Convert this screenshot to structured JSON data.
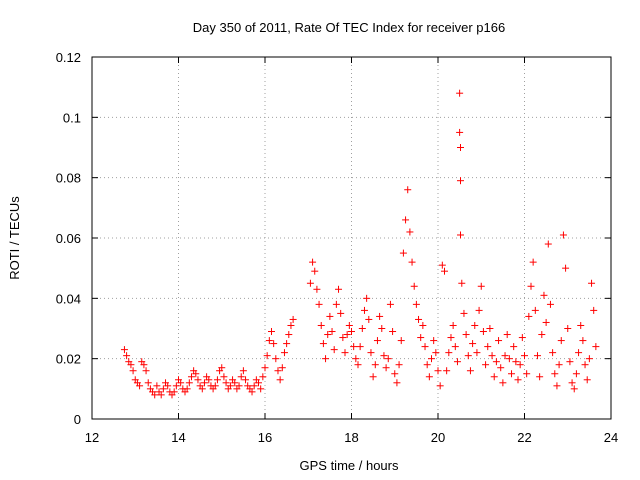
{
  "chart_data": {
    "type": "scatter",
    "title": "Day 350 of 2011, Rate Of TEC Index for receiver p166",
    "xlabel": "GPS time / hours",
    "ylabel": "ROTI / TECUs",
    "xlim": [
      12,
      24
    ],
    "ylim": [
      0,
      0.12
    ],
    "xticks": [
      12,
      14,
      16,
      18,
      20,
      22,
      24
    ],
    "xtick_labels": [
      "12",
      "14",
      "16",
      "18",
      "20",
      "22",
      "24"
    ],
    "yticks": [
      0,
      0.02,
      0.04,
      0.06,
      0.08,
      0.1,
      0.12
    ],
    "ytick_labels": [
      "0",
      "0.02",
      "0.04",
      "0.06",
      "0.08",
      "0.1",
      "0.12"
    ],
    "grid": true,
    "marker": "+",
    "color": "#ff0000",
    "series": [
      {
        "name": "ROTI",
        "points": [
          [
            12.75,
            0.023
          ],
          [
            12.8,
            0.021
          ],
          [
            12.85,
            0.019
          ],
          [
            12.9,
            0.018
          ],
          [
            12.95,
            0.016
          ],
          [
            13.0,
            0.013
          ],
          [
            13.05,
            0.012
          ],
          [
            13.1,
            0.011
          ],
          [
            13.15,
            0.019
          ],
          [
            13.2,
            0.018
          ],
          [
            13.25,
            0.016
          ],
          [
            13.3,
            0.012
          ],
          [
            13.35,
            0.01
          ],
          [
            13.4,
            0.009
          ],
          [
            13.45,
            0.008
          ],
          [
            13.5,
            0.011
          ],
          [
            13.55,
            0.009
          ],
          [
            13.6,
            0.008
          ],
          [
            13.65,
            0.01
          ],
          [
            13.7,
            0.012
          ],
          [
            13.75,
            0.011
          ],
          [
            13.8,
            0.009
          ],
          [
            13.85,
            0.008
          ],
          [
            13.9,
            0.009
          ],
          [
            13.95,
            0.011
          ],
          [
            14.0,
            0.013
          ],
          [
            14.05,
            0.012
          ],
          [
            14.1,
            0.01
          ],
          [
            14.15,
            0.009
          ],
          [
            14.2,
            0.01
          ],
          [
            14.25,
            0.012
          ],
          [
            14.3,
            0.014
          ],
          [
            14.35,
            0.016
          ],
          [
            14.4,
            0.015
          ],
          [
            14.45,
            0.013
          ],
          [
            14.5,
            0.011
          ],
          [
            14.55,
            0.01
          ],
          [
            14.6,
            0.012
          ],
          [
            14.65,
            0.014
          ],
          [
            14.7,
            0.013
          ],
          [
            14.75,
            0.011
          ],
          [
            14.8,
            0.01
          ],
          [
            14.85,
            0.011
          ],
          [
            14.9,
            0.013
          ],
          [
            14.95,
            0.016
          ],
          [
            15.0,
            0.017
          ],
          [
            15.05,
            0.014
          ],
          [
            15.1,
            0.012
          ],
          [
            15.15,
            0.01
          ],
          [
            15.2,
            0.011
          ],
          [
            15.25,
            0.013
          ],
          [
            15.3,
            0.012
          ],
          [
            15.35,
            0.01
          ],
          [
            15.4,
            0.011
          ],
          [
            15.45,
            0.014
          ],
          [
            15.5,
            0.016
          ],
          [
            15.55,
            0.013
          ],
          [
            15.6,
            0.011
          ],
          [
            15.65,
            0.01
          ],
          [
            15.7,
            0.009
          ],
          [
            15.75,
            0.011
          ],
          [
            15.8,
            0.013
          ],
          [
            15.85,
            0.012
          ],
          [
            15.9,
            0.01
          ],
          [
            15.95,
            0.014
          ],
          [
            16.0,
            0.017
          ],
          [
            16.05,
            0.021
          ],
          [
            16.1,
            0.026
          ],
          [
            16.15,
            0.029
          ],
          [
            16.2,
            0.025
          ],
          [
            16.25,
            0.02
          ],
          [
            16.3,
            0.016
          ],
          [
            16.35,
            0.013
          ],
          [
            16.4,
            0.017
          ],
          [
            16.45,
            0.022
          ],
          [
            16.5,
            0.025
          ],
          [
            16.55,
            0.028
          ],
          [
            16.6,
            0.031
          ],
          [
            16.65,
            0.033
          ],
          [
            17.05,
            0.045
          ],
          [
            17.1,
            0.052
          ],
          [
            17.15,
            0.049
          ],
          [
            17.2,
            0.043
          ],
          [
            17.25,
            0.038
          ],
          [
            17.3,
            0.031
          ],
          [
            17.35,
            0.025
          ],
          [
            17.4,
            0.02
          ],
          [
            17.45,
            0.028
          ],
          [
            17.5,
            0.034
          ],
          [
            17.55,
            0.029
          ],
          [
            17.6,
            0.023
          ],
          [
            17.65,
            0.038
          ],
          [
            17.7,
            0.043
          ],
          [
            17.75,
            0.035
          ],
          [
            17.8,
            0.027
          ],
          [
            17.85,
            0.022
          ],
          [
            17.9,
            0.028
          ],
          [
            17.95,
            0.031
          ],
          [
            18.0,
            0.029
          ],
          [
            18.05,
            0.024
          ],
          [
            18.1,
            0.02
          ],
          [
            18.15,
            0.018
          ],
          [
            18.2,
            0.024
          ],
          [
            18.25,
            0.03
          ],
          [
            18.3,
            0.036
          ],
          [
            18.35,
            0.04
          ],
          [
            18.4,
            0.033
          ],
          [
            18.45,
            0.022
          ],
          [
            18.5,
            0.014
          ],
          [
            18.55,
            0.018
          ],
          [
            18.6,
            0.026
          ],
          [
            18.65,
            0.034
          ],
          [
            18.7,
            0.03
          ],
          [
            18.75,
            0.021
          ],
          [
            18.8,
            0.017
          ],
          [
            18.85,
            0.02
          ],
          [
            18.9,
            0.038
          ],
          [
            18.95,
            0.029
          ],
          [
            19.0,
            0.015
          ],
          [
            19.05,
            0.012
          ],
          [
            19.1,
            0.018
          ],
          [
            19.15,
            0.026
          ],
          [
            19.2,
            0.055
          ],
          [
            19.25,
            0.066
          ],
          [
            19.3,
            0.076
          ],
          [
            19.35,
            0.062
          ],
          [
            19.4,
            0.052
          ],
          [
            19.45,
            0.044
          ],
          [
            19.5,
            0.038
          ],
          [
            19.55,
            0.033
          ],
          [
            19.6,
            0.027
          ],
          [
            19.65,
            0.031
          ],
          [
            19.7,
            0.024
          ],
          [
            19.75,
            0.018
          ],
          [
            19.8,
            0.014
          ],
          [
            19.85,
            0.02
          ],
          [
            19.9,
            0.026
          ],
          [
            19.95,
            0.022
          ],
          [
            20.0,
            0.016
          ],
          [
            20.05,
            0.011
          ],
          [
            20.1,
            0.051
          ],
          [
            20.15,
            0.049
          ],
          [
            20.2,
            0.016
          ],
          [
            20.25,
            0.022
          ],
          [
            20.3,
            0.027
          ],
          [
            20.35,
            0.031
          ],
          [
            20.4,
            0.024
          ],
          [
            20.45,
            0.019
          ],
          [
            20.5,
            0.108
          ],
          [
            20.5,
            0.095
          ],
          [
            20.52,
            0.09
          ],
          [
            20.52,
            0.079
          ],
          [
            20.52,
            0.061
          ],
          [
            20.55,
            0.045
          ],
          [
            20.6,
            0.035
          ],
          [
            20.65,
            0.028
          ],
          [
            20.7,
            0.021
          ],
          [
            20.75,
            0.016
          ],
          [
            20.8,
            0.025
          ],
          [
            20.85,
            0.031
          ],
          [
            20.9,
            0.022
          ],
          [
            20.95,
            0.036
          ],
          [
            21.0,
            0.044
          ],
          [
            21.05,
            0.029
          ],
          [
            21.1,
            0.018
          ],
          [
            21.15,
            0.024
          ],
          [
            21.2,
            0.03
          ],
          [
            21.25,
            0.021
          ],
          [
            21.3,
            0.014
          ],
          [
            21.35,
            0.019
          ],
          [
            21.4,
            0.026
          ],
          [
            21.45,
            0.017
          ],
          [
            21.5,
            0.012
          ],
          [
            21.55,
            0.021
          ],
          [
            21.6,
            0.028
          ],
          [
            21.65,
            0.02
          ],
          [
            21.7,
            0.015
          ],
          [
            21.75,
            0.024
          ],
          [
            21.8,
            0.019
          ],
          [
            21.85,
            0.013
          ],
          [
            21.9,
            0.018
          ],
          [
            21.95,
            0.027
          ],
          [
            22.0,
            0.021
          ],
          [
            22.05,
            0.015
          ],
          [
            22.1,
            0.034
          ],
          [
            22.15,
            0.044
          ],
          [
            22.2,
            0.052
          ],
          [
            22.25,
            0.036
          ],
          [
            22.3,
            0.021
          ],
          [
            22.35,
            0.014
          ],
          [
            22.4,
            0.028
          ],
          [
            22.45,
            0.041
          ],
          [
            22.5,
            0.032
          ],
          [
            22.55,
            0.058
          ],
          [
            22.6,
            0.038
          ],
          [
            22.65,
            0.022
          ],
          [
            22.7,
            0.015
          ],
          [
            22.75,
            0.011
          ],
          [
            22.8,
            0.018
          ],
          [
            22.85,
            0.026
          ],
          [
            22.9,
            0.061
          ],
          [
            22.95,
            0.05
          ],
          [
            23.0,
            0.03
          ],
          [
            23.05,
            0.019
          ],
          [
            23.1,
            0.012
          ],
          [
            23.15,
            0.01
          ],
          [
            23.2,
            0.015
          ],
          [
            23.25,
            0.022
          ],
          [
            23.3,
            0.031
          ],
          [
            23.35,
            0.026
          ],
          [
            23.4,
            0.018
          ],
          [
            23.45,
            0.013
          ],
          [
            23.5,
            0.02
          ],
          [
            23.55,
            0.045
          ],
          [
            23.6,
            0.036
          ],
          [
            23.65,
            0.024
          ]
        ]
      }
    ]
  }
}
